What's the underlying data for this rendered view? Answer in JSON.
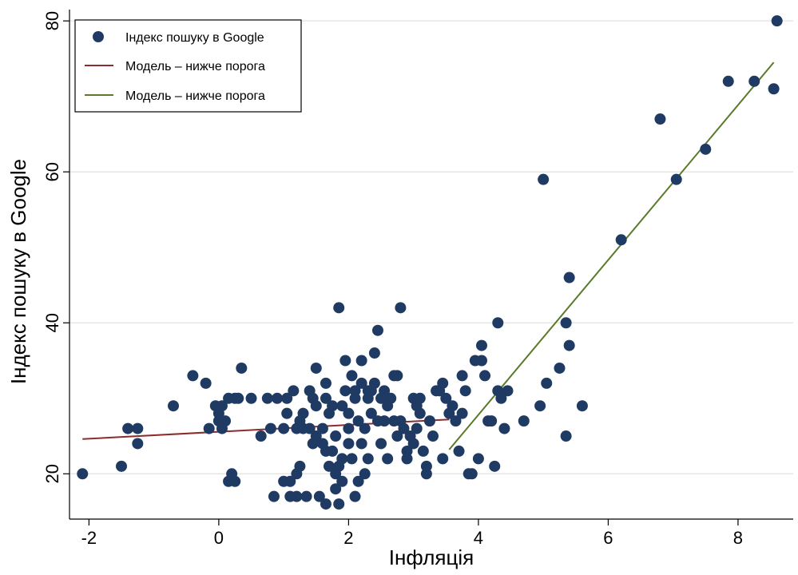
{
  "chart_data": {
    "type": "scatter",
    "title": "",
    "xlabel": "Інфляція",
    "ylabel": "Індекс пошуку в Google",
    "xlim": [
      -2.3,
      8.85
    ],
    "ylim": [
      14,
      81.5
    ],
    "xticks": [
      -2,
      0,
      2,
      4,
      6,
      8
    ],
    "yticks": [
      20,
      40,
      60,
      80
    ],
    "xtick_labels": [
      "-2",
      "0",
      "2",
      "4",
      "6",
      "8"
    ],
    "ytick_labels": [
      "20",
      "40",
      "60",
      "80"
    ],
    "grid": "horizontal",
    "legend_position": "top-left",
    "colors": {
      "points": "#1f3b63",
      "line_below": "#8b2d2d",
      "line_above": "#5a7a2a",
      "grid": "#e6e6e6"
    },
    "legend": [
      {
        "label": "Індекс пошуку в Google",
        "kind": "marker",
        "color": "#1f3b63"
      },
      {
        "label": "Модель – нижче порога",
        "kind": "line",
        "color": "#8b2d2d"
      },
      {
        "label": "Модель – нижче порога",
        "kind": "line",
        "color": "#5a7a2a"
      }
    ],
    "series": [
      {
        "name": "Індекс пошуку в Google",
        "kind": "scatter",
        "points": [
          [
            -2.1,
            20
          ],
          [
            -1.5,
            21
          ],
          [
            -1.4,
            26
          ],
          [
            -1.25,
            26
          ],
          [
            -1.25,
            24
          ],
          [
            -0.7,
            29
          ],
          [
            -0.4,
            33
          ],
          [
            -0.2,
            32
          ],
          [
            -0.15,
            26
          ],
          [
            -0.05,
            29
          ],
          [
            0.0,
            27
          ],
          [
            0.0,
            28
          ],
          [
            0.05,
            29
          ],
          [
            0.05,
            26
          ],
          [
            0.1,
            27
          ],
          [
            0.15,
            30
          ],
          [
            0.15,
            19
          ],
          [
            0.2,
            20
          ],
          [
            0.25,
            30
          ],
          [
            0.25,
            19
          ],
          [
            0.3,
            30
          ],
          [
            0.35,
            34
          ],
          [
            0.5,
            30
          ],
          [
            0.65,
            25
          ],
          [
            0.75,
            30
          ],
          [
            0.8,
            26
          ],
          [
            0.85,
            17
          ],
          [
            0.9,
            30
          ],
          [
            1.0,
            26
          ],
          [
            1.0,
            19
          ],
          [
            1.05,
            28
          ],
          [
            1.05,
            30
          ],
          [
            1.1,
            17
          ],
          [
            1.1,
            19
          ],
          [
            1.15,
            31
          ],
          [
            1.2,
            26
          ],
          [
            1.2,
            20
          ],
          [
            1.2,
            17
          ],
          [
            1.25,
            21
          ],
          [
            1.25,
            27
          ],
          [
            1.3,
            28
          ],
          [
            1.3,
            26
          ],
          [
            1.35,
            17
          ],
          [
            1.4,
            26
          ],
          [
            1.4,
            31
          ],
          [
            1.45,
            24
          ],
          [
            1.45,
            30
          ],
          [
            1.5,
            34
          ],
          [
            1.5,
            29
          ],
          [
            1.5,
            25
          ],
          [
            1.55,
            17
          ],
          [
            1.6,
            24
          ],
          [
            1.6,
            26
          ],
          [
            1.65,
            23
          ],
          [
            1.65,
            32
          ],
          [
            1.65,
            30
          ],
          [
            1.65,
            16
          ],
          [
            1.7,
            28
          ],
          [
            1.7,
            21
          ],
          [
            1.75,
            29
          ],
          [
            1.75,
            23
          ],
          [
            1.8,
            20
          ],
          [
            1.8,
            25
          ],
          [
            1.8,
            18
          ],
          [
            1.85,
            21
          ],
          [
            1.85,
            16
          ],
          [
            1.85,
            42
          ],
          [
            1.9,
            29
          ],
          [
            1.9,
            19
          ],
          [
            1.9,
            22
          ],
          [
            1.95,
            35
          ],
          [
            1.95,
            31
          ],
          [
            2.0,
            28
          ],
          [
            2.0,
            26
          ],
          [
            2.0,
            24
          ],
          [
            2.05,
            33
          ],
          [
            2.05,
            22
          ],
          [
            2.1,
            31
          ],
          [
            2.1,
            30
          ],
          [
            2.1,
            17
          ],
          [
            2.15,
            19
          ],
          [
            2.15,
            27
          ],
          [
            2.2,
            35
          ],
          [
            2.2,
            32
          ],
          [
            2.2,
            24
          ],
          [
            2.25,
            26
          ],
          [
            2.25,
            20
          ],
          [
            2.3,
            30
          ],
          [
            2.3,
            22
          ],
          [
            2.3,
            31
          ],
          [
            2.35,
            31
          ],
          [
            2.35,
            28
          ],
          [
            2.4,
            36
          ],
          [
            2.4,
            32
          ],
          [
            2.45,
            39
          ],
          [
            2.45,
            27
          ],
          [
            2.5,
            30
          ],
          [
            2.5,
            24
          ],
          [
            2.55,
            31
          ],
          [
            2.55,
            27
          ],
          [
            2.6,
            29
          ],
          [
            2.6,
            22
          ],
          [
            2.65,
            30
          ],
          [
            2.7,
            33
          ],
          [
            2.7,
            27
          ],
          [
            2.75,
            33
          ],
          [
            2.75,
            25
          ],
          [
            2.8,
            42
          ],
          [
            2.8,
            27
          ],
          [
            2.85,
            26
          ],
          [
            2.9,
            23
          ],
          [
            2.9,
            22
          ],
          [
            2.95,
            25
          ],
          [
            3.0,
            24
          ],
          [
            3.0,
            30
          ],
          [
            3.05,
            29
          ],
          [
            3.05,
            26
          ],
          [
            3.1,
            28
          ],
          [
            3.1,
            30
          ],
          [
            3.15,
            23
          ],
          [
            3.2,
            20
          ],
          [
            3.2,
            21
          ],
          [
            3.25,
            27
          ],
          [
            3.3,
            25
          ],
          [
            3.35,
            31
          ],
          [
            3.4,
            31
          ],
          [
            3.45,
            32
          ],
          [
            3.45,
            22
          ],
          [
            3.5,
            30
          ],
          [
            3.55,
            28
          ],
          [
            3.6,
            29
          ],
          [
            3.65,
            27
          ],
          [
            3.7,
            23
          ],
          [
            3.75,
            33
          ],
          [
            3.75,
            28
          ],
          [
            3.8,
            31
          ],
          [
            3.85,
            20
          ],
          [
            3.9,
            20
          ],
          [
            3.95,
            35
          ],
          [
            4.0,
            22
          ],
          [
            4.05,
            37
          ],
          [
            4.05,
            35
          ],
          [
            4.1,
            33
          ],
          [
            4.15,
            27
          ],
          [
            4.2,
            27
          ],
          [
            4.25,
            21
          ],
          [
            4.3,
            31
          ],
          [
            4.3,
            40
          ],
          [
            4.35,
            30
          ],
          [
            4.4,
            26
          ],
          [
            4.45,
            31
          ],
          [
            4.7,
            27
          ],
          [
            4.95,
            29
          ],
          [
            5.0,
            59
          ],
          [
            5.05,
            32
          ],
          [
            5.25,
            34
          ],
          [
            5.35,
            40
          ],
          [
            5.35,
            25
          ],
          [
            5.4,
            46
          ],
          [
            5.4,
            37
          ],
          [
            5.6,
            29
          ],
          [
            6.2,
            51
          ],
          [
            6.8,
            67
          ],
          [
            7.05,
            59
          ],
          [
            7.5,
            63
          ],
          [
            7.85,
            72
          ],
          [
            8.25,
            72
          ],
          [
            8.55,
            71
          ],
          [
            8.6,
            80
          ]
        ]
      },
      {
        "name": "Модель – нижче порога",
        "kind": "line",
        "x": [
          -2.1,
          3.55
        ],
        "y": [
          24.6,
          27.2
        ]
      },
      {
        "name": "Модель – нижче порога",
        "kind": "line",
        "x": [
          3.55,
          8.55
        ],
        "y": [
          23.2,
          74.5
        ]
      }
    ]
  }
}
